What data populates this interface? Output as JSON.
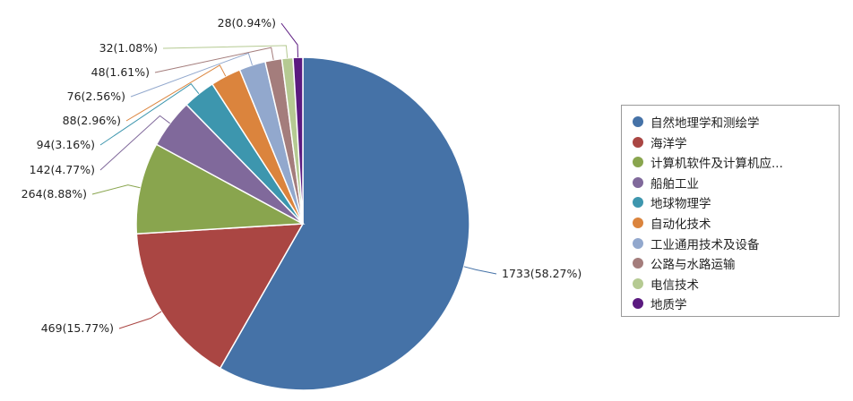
{
  "chart_data": {
    "type": "pie",
    "start_angle_deg": 0,
    "direction": "clockwise",
    "legend_position": "right",
    "slices": [
      {
        "label": "自然地理学和测绘学",
        "value": 1733,
        "percent": "58.27%",
        "data_label": "1733(58.27%)",
        "color": "#4572a7"
      },
      {
        "label": "海洋学",
        "value": 469,
        "percent": "15.77%",
        "data_label": "469(15.77%)",
        "color": "#aa4643"
      },
      {
        "label": "计算机软件及计算机应...",
        "value": 264,
        "percent": "8.88%",
        "data_label": "264(8.88%)",
        "color": "#89a54e"
      },
      {
        "label": "船舶工业",
        "value": 142,
        "percent": "4.77%",
        "data_label": "142(4.77%)",
        "color": "#80699b"
      },
      {
        "label": "地球物理学",
        "value": 94,
        "percent": "3.16%",
        "data_label": "94(3.16%)",
        "color": "#3d96ae"
      },
      {
        "label": "自动化技术",
        "value": 88,
        "percent": "2.96%",
        "data_label": "88(2.96%)",
        "color": "#db843d"
      },
      {
        "label": "工业通用技术及设备",
        "value": 76,
        "percent": "2.56%",
        "data_label": "76(2.56%)",
        "color": "#92a8cd"
      },
      {
        "label": "公路与水路运输",
        "value": 48,
        "percent": "1.61%",
        "data_label": "48(1.61%)",
        "color": "#a47d7c"
      },
      {
        "label": "电信技术",
        "value": 32,
        "percent": "1.08%",
        "data_label": "32(1.08%)",
        "color": "#b5ca92"
      },
      {
        "label": "地质学",
        "value": 28,
        "percent": "0.94%",
        "data_label": "28(0.94%)",
        "color": "#5b1a80"
      }
    ]
  }
}
